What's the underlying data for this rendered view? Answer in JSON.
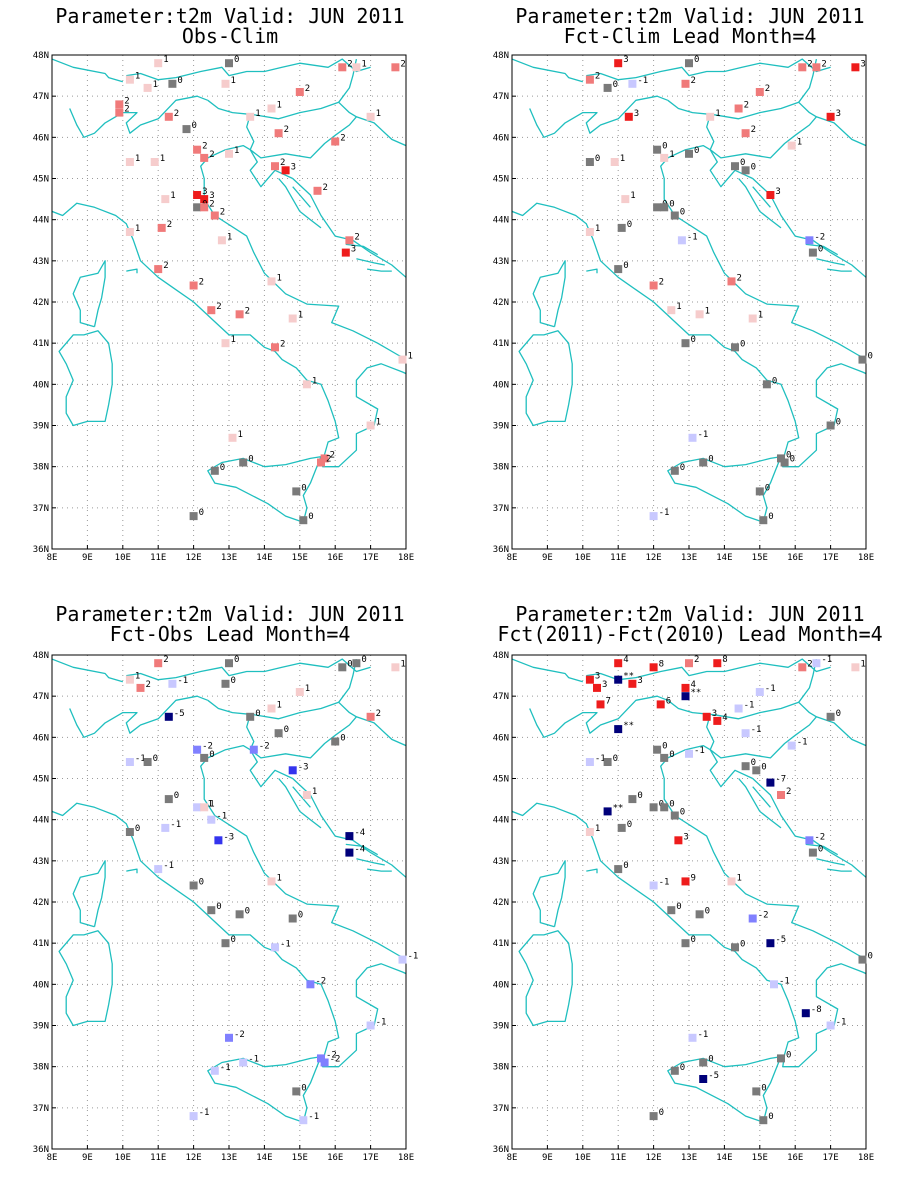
{
  "lon_ticks": [
    "8E",
    "9E",
    "10E",
    "11E",
    "12E",
    "13E",
    "14E",
    "15E",
    "16E",
    "17E",
    "18E"
  ],
  "lat_ticks": [
    "48N",
    "47N",
    "46N",
    "45N",
    "44N",
    "43N",
    "42N",
    "41N",
    "40N",
    "39N",
    "38N",
    "37N",
    "36N"
  ],
  "colors": {
    "coast": "#1fbfbf",
    "grid": "#9a9a9a",
    "zero": "#7a7a7a",
    "pos1": "#f6cccc",
    "pos2": "#f07a7a",
    "pos3": "#ee1c1c",
    "neg1": "#c8c8ff",
    "neg2": "#8080ff",
    "neg3": "#3434ee",
    "neg4": "#00007a"
  },
  "panels": [
    {
      "title1": "Parameter:t2m Valid: JUN 2011",
      "title2": "Obs-Clim",
      "stations": [
        [
          11.0,
          47.8,
          "1"
        ],
        [
          13.0,
          47.8,
          "0"
        ],
        [
          16.2,
          47.7,
          "2"
        ],
        [
          16.6,
          47.7,
          "1"
        ],
        [
          17.7,
          47.7,
          "2"
        ],
        [
          10.2,
          47.4,
          "1"
        ],
        [
          10.7,
          47.2,
          "1"
        ],
        [
          11.4,
          47.3,
          "0"
        ],
        [
          12.9,
          47.3,
          "1"
        ],
        [
          15.0,
          47.1,
          "2"
        ],
        [
          9.9,
          46.8,
          "2"
        ],
        [
          9.9,
          46.6,
          "2"
        ],
        [
          11.3,
          46.5,
          "2"
        ],
        [
          11.8,
          46.2,
          "0"
        ],
        [
          13.6,
          46.5,
          "1"
        ],
        [
          14.2,
          46.7,
          "1"
        ],
        [
          17.0,
          46.5,
          "1"
        ],
        [
          14.4,
          46.1,
          "2"
        ],
        [
          16.0,
          45.9,
          "2"
        ],
        [
          12.1,
          45.7,
          "2"
        ],
        [
          12.3,
          45.5,
          "2"
        ],
        [
          10.2,
          45.4,
          "1"
        ],
        [
          10.9,
          45.4,
          "1"
        ],
        [
          13.0,
          45.6,
          "1"
        ],
        [
          14.3,
          45.3,
          "2"
        ],
        [
          14.6,
          45.2,
          "3"
        ],
        [
          11.2,
          44.5,
          "1"
        ],
        [
          12.1,
          44.6,
          "3"
        ],
        [
          12.3,
          44.5,
          "3"
        ],
        [
          12.1,
          44.3,
          "0"
        ],
        [
          12.3,
          44.3,
          "2"
        ],
        [
          12.6,
          44.1,
          "2"
        ],
        [
          15.5,
          44.7,
          "2"
        ],
        [
          11.1,
          43.8,
          "2"
        ],
        [
          10.2,
          43.7,
          "1"
        ],
        [
          12.8,
          43.5,
          "1"
        ],
        [
          16.4,
          43.5,
          "2"
        ],
        [
          16.3,
          43.2,
          "3"
        ],
        [
          11.0,
          42.8,
          "2"
        ],
        [
          12.0,
          42.4,
          "2"
        ],
        [
          14.2,
          42.5,
          "1"
        ],
        [
          12.5,
          41.8,
          "2"
        ],
        [
          13.3,
          41.7,
          "2"
        ],
        [
          14.8,
          41.6,
          "1"
        ],
        [
          12.9,
          41.0,
          "1"
        ],
        [
          14.3,
          40.9,
          "2"
        ],
        [
          15.2,
          40.0,
          "1"
        ],
        [
          17.9,
          40.6,
          "1"
        ],
        [
          17.0,
          39.0,
          "1"
        ],
        [
          13.1,
          38.7,
          "1"
        ],
        [
          15.7,
          38.2,
          "2"
        ],
        [
          15.6,
          38.1,
          "2"
        ],
        [
          12.6,
          37.9,
          "0"
        ],
        [
          13.4,
          38.1,
          "0"
        ],
        [
          14.9,
          37.4,
          "0"
        ],
        [
          15.1,
          36.7,
          "0"
        ],
        [
          12.0,
          36.8,
          "0"
        ]
      ]
    },
    {
      "title1": "Parameter:t2m Valid: JUN 2011",
      "title2": "Fct-Clim Lead Month=4",
      "stations": [
        [
          11.0,
          47.8,
          "3"
        ],
        [
          13.0,
          47.8,
          "0"
        ],
        [
          16.2,
          47.7,
          "2"
        ],
        [
          16.6,
          47.7,
          "2"
        ],
        [
          17.7,
          47.7,
          "3"
        ],
        [
          10.2,
          47.4,
          "2"
        ],
        [
          10.7,
          47.2,
          "0"
        ],
        [
          11.4,
          47.3,
          "-1"
        ],
        [
          12.9,
          47.3,
          "2"
        ],
        [
          15.0,
          47.1,
          "2"
        ],
        [
          11.3,
          46.5,
          "3"
        ],
        [
          13.6,
          46.5,
          "1"
        ],
        [
          14.4,
          46.7,
          "2"
        ],
        [
          17.0,
          46.5,
          "3"
        ],
        [
          14.6,
          46.1,
          "2"
        ],
        [
          15.9,
          45.8,
          "1"
        ],
        [
          12.1,
          45.7,
          "0"
        ],
        [
          12.3,
          45.5,
          "1"
        ],
        [
          10.2,
          45.4,
          "0"
        ],
        [
          10.9,
          45.4,
          "1"
        ],
        [
          13.0,
          45.6,
          "0"
        ],
        [
          14.3,
          45.3,
          "0"
        ],
        [
          14.6,
          45.2,
          "0"
        ],
        [
          11.2,
          44.5,
          "1"
        ],
        [
          15.3,
          44.6,
          "3"
        ],
        [
          12.1,
          44.3,
          "0"
        ],
        [
          12.3,
          44.3,
          "0"
        ],
        [
          12.6,
          44.1,
          "0"
        ],
        [
          11.1,
          43.8,
          "0"
        ],
        [
          10.2,
          43.7,
          "1"
        ],
        [
          12.8,
          43.5,
          "-1"
        ],
        [
          16.4,
          43.5,
          "-2"
        ],
        [
          16.5,
          43.2,
          "0"
        ],
        [
          11.0,
          42.8,
          "0"
        ],
        [
          12.0,
          42.4,
          "2"
        ],
        [
          14.2,
          42.5,
          "2"
        ],
        [
          12.5,
          41.8,
          "1"
        ],
        [
          13.3,
          41.7,
          "1"
        ],
        [
          14.8,
          41.6,
          "1"
        ],
        [
          12.9,
          41.0,
          "0"
        ],
        [
          14.3,
          40.9,
          "0"
        ],
        [
          15.2,
          40.0,
          "0"
        ],
        [
          17.9,
          40.6,
          "0"
        ],
        [
          17.0,
          39.0,
          "0"
        ],
        [
          13.1,
          38.7,
          "-1"
        ],
        [
          15.6,
          38.2,
          "0"
        ],
        [
          15.7,
          38.1,
          "0"
        ],
        [
          12.6,
          37.9,
          "0"
        ],
        [
          13.4,
          38.1,
          "0"
        ],
        [
          15.0,
          37.4,
          "0"
        ],
        [
          15.1,
          36.7,
          "0"
        ],
        [
          12.0,
          36.8,
          "-1"
        ]
      ]
    },
    {
      "title1": "Parameter:t2m Valid: JUN 2011",
      "title2": "Fct-Obs Lead Month=4",
      "stations": [
        [
          11.0,
          47.8,
          "2"
        ],
        [
          13.0,
          47.8,
          "0"
        ],
        [
          16.2,
          47.7,
          "0"
        ],
        [
          16.6,
          47.8,
          "0"
        ],
        [
          17.7,
          47.7,
          "1"
        ],
        [
          10.2,
          47.4,
          "1"
        ],
        [
          10.5,
          47.2,
          "2"
        ],
        [
          11.4,
          47.3,
          "-1"
        ],
        [
          12.9,
          47.3,
          "0"
        ],
        [
          15.0,
          47.1,
          "1"
        ],
        [
          11.3,
          46.5,
          "-5"
        ],
        [
          13.6,
          46.5,
          "0"
        ],
        [
          14.2,
          46.7,
          "1"
        ],
        [
          17.0,
          46.5,
          "2"
        ],
        [
          14.4,
          46.1,
          "0"
        ],
        [
          16.0,
          45.9,
          "0"
        ],
        [
          12.1,
          45.7,
          "-2"
        ],
        [
          12.3,
          45.5,
          "0"
        ],
        [
          13.7,
          45.7,
          "-2"
        ],
        [
          10.2,
          45.4,
          "-1"
        ],
        [
          10.7,
          45.4,
          "0"
        ],
        [
          14.8,
          45.2,
          "-3"
        ],
        [
          11.3,
          44.5,
          "0"
        ],
        [
          12.1,
          44.3,
          "-1"
        ],
        [
          12.3,
          44.3,
          "1"
        ],
        [
          12.5,
          44.0,
          "-1"
        ],
        [
          11.2,
          43.8,
          "-1"
        ],
        [
          10.2,
          43.7,
          "0"
        ],
        [
          12.7,
          43.5,
          "-3"
        ],
        [
          15.2,
          44.6,
          "1"
        ],
        [
          16.4,
          43.6,
          "-4"
        ],
        [
          16.4,
          43.2,
          "-4"
        ],
        [
          11.0,
          42.8,
          "-1"
        ],
        [
          12.0,
          42.4,
          "0"
        ],
        [
          14.2,
          42.5,
          "1"
        ],
        [
          12.5,
          41.8,
          "0"
        ],
        [
          13.3,
          41.7,
          "0"
        ],
        [
          14.8,
          41.6,
          "0"
        ],
        [
          12.9,
          41.0,
          "0"
        ],
        [
          14.3,
          40.9,
          "-1"
        ],
        [
          15.3,
          40.0,
          "-2"
        ],
        [
          17.9,
          40.6,
          "-1"
        ],
        [
          17.0,
          39.0,
          "-1"
        ],
        [
          13.0,
          38.7,
          "-2"
        ],
        [
          15.6,
          38.2,
          "-2"
        ],
        [
          15.7,
          38.1,
          "-2"
        ],
        [
          12.6,
          37.9,
          "-1"
        ],
        [
          13.4,
          38.1,
          "-1"
        ],
        [
          14.9,
          37.4,
          "0"
        ],
        [
          15.1,
          36.7,
          "-1"
        ],
        [
          12.0,
          36.8,
          "-1"
        ]
      ]
    },
    {
      "title1": "Parameter:t2m Valid: JUN 2011",
      "title2": "Fct(2011)-Fct(2010) Lead Month=4",
      "stations": [
        [
          11.0,
          47.8,
          "4"
        ],
        [
          12.0,
          47.7,
          "8"
        ],
        [
          13.0,
          47.8,
          "2"
        ],
        [
          13.8,
          47.8,
          "8"
        ],
        [
          16.2,
          47.7,
          "2"
        ],
        [
          16.6,
          47.8,
          "-1"
        ],
        [
          17.7,
          47.7,
          "1"
        ],
        [
          10.2,
          47.4,
          "3"
        ],
        [
          11.0,
          47.4,
          "**"
        ],
        [
          11.4,
          47.3,
          "3"
        ],
        [
          10.4,
          47.2,
          "3"
        ],
        [
          12.9,
          47.2,
          "4"
        ],
        [
          12.9,
          47.0,
          "**"
        ],
        [
          15.0,
          47.1,
          "-1"
        ],
        [
          10.5,
          46.8,
          "7"
        ],
        [
          12.2,
          46.8,
          "6"
        ],
        [
          13.5,
          46.5,
          "3"
        ],
        [
          13.8,
          46.4,
          "4"
        ],
        [
          14.4,
          46.7,
          "-1"
        ],
        [
          17.0,
          46.5,
          "0"
        ],
        [
          11.0,
          46.2,
          "**"
        ],
        [
          14.6,
          46.1,
          "-1"
        ],
        [
          15.9,
          45.8,
          "-1"
        ],
        [
          12.1,
          45.7,
          "0"
        ],
        [
          12.3,
          45.5,
          "0"
        ],
        [
          10.2,
          45.4,
          "-1"
        ],
        [
          10.7,
          45.4,
          "0"
        ],
        [
          13.0,
          45.6,
          "-1"
        ],
        [
          14.6,
          45.3,
          "0"
        ],
        [
          14.9,
          45.2,
          "0"
        ],
        [
          15.3,
          44.9,
          "-7"
        ],
        [
          11.4,
          44.5,
          "0"
        ],
        [
          15.6,
          44.6,
          "2"
        ],
        [
          10.7,
          44.2,
          "**"
        ],
        [
          12.0,
          44.3,
          "0"
        ],
        [
          12.3,
          44.3,
          "0"
        ],
        [
          12.6,
          44.1,
          "0"
        ],
        [
          11.1,
          43.8,
          "0"
        ],
        [
          10.2,
          43.7,
          "1"
        ],
        [
          12.7,
          43.5,
          "3"
        ],
        [
          16.4,
          43.5,
          "-2"
        ],
        [
          16.5,
          43.2,
          "0"
        ],
        [
          11.0,
          42.8,
          "0"
        ],
        [
          12.0,
          42.4,
          "-1"
        ],
        [
          12.9,
          42.5,
          "9"
        ],
        [
          14.2,
          42.5,
          "1"
        ],
        [
          12.5,
          41.8,
          "0"
        ],
        [
          13.3,
          41.7,
          "0"
        ],
        [
          14.8,
          41.6,
          "-2"
        ],
        [
          12.9,
          41.0,
          "0"
        ],
        [
          14.3,
          40.9,
          "0"
        ],
        [
          15.3,
          41.0,
          "-5"
        ],
        [
          15.4,
          40.0,
          "-1"
        ],
        [
          17.9,
          40.6,
          "0"
        ],
        [
          16.3,
          39.3,
          "-8"
        ],
        [
          17.0,
          39.0,
          "-1"
        ],
        [
          13.1,
          38.7,
          "-1"
        ],
        [
          15.6,
          38.2,
          "0"
        ],
        [
          12.6,
          37.9,
          "0"
        ],
        [
          13.4,
          38.1,
          "0"
        ],
        [
          13.4,
          37.7,
          "-5"
        ],
        [
          14.9,
          37.4,
          "0"
        ],
        [
          15.1,
          36.7,
          "0"
        ],
        [
          12.0,
          36.8,
          "0"
        ]
      ]
    }
  ]
}
